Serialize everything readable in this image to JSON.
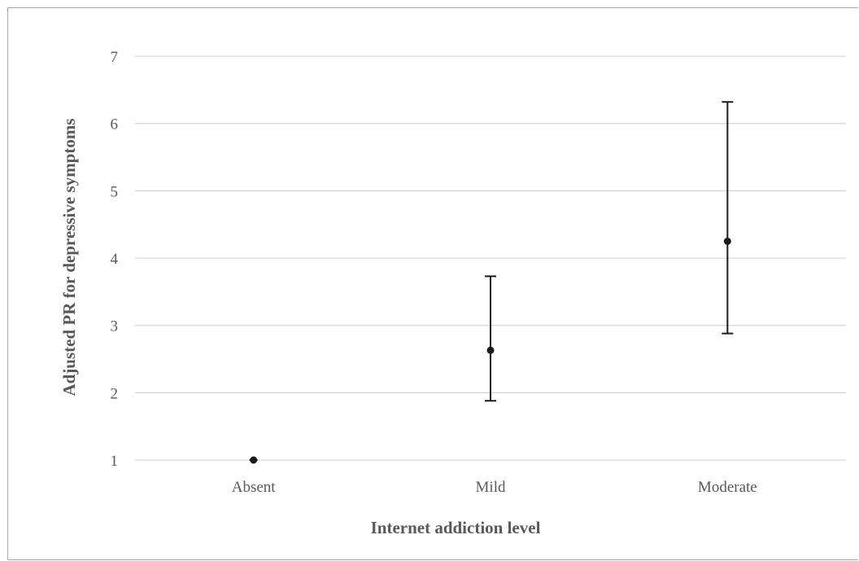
{
  "chart_data": {
    "type": "scatter",
    "title": "",
    "xlabel": "Internet addiction level",
    "ylabel": "Adjusted PR for depressive symptoms",
    "categories": [
      "Absent",
      "Mild",
      "Moderate"
    ],
    "series": [
      {
        "values": [
          1.0,
          2.63,
          4.25
        ],
        "lower": [
          1.0,
          1.88,
          2.88
        ],
        "upper": [
          1.0,
          3.73,
          6.32
        ]
      }
    ],
    "ylim": [
      1,
      7
    ],
    "yticks": [
      1,
      2,
      3,
      4,
      5,
      6,
      7
    ],
    "grid": true,
    "legend": "none",
    "colors": {
      "marker": "#1a1a1a",
      "errorbar": "#1a1a1a",
      "grid": "#d9d9d9",
      "text": "#595959"
    }
  }
}
